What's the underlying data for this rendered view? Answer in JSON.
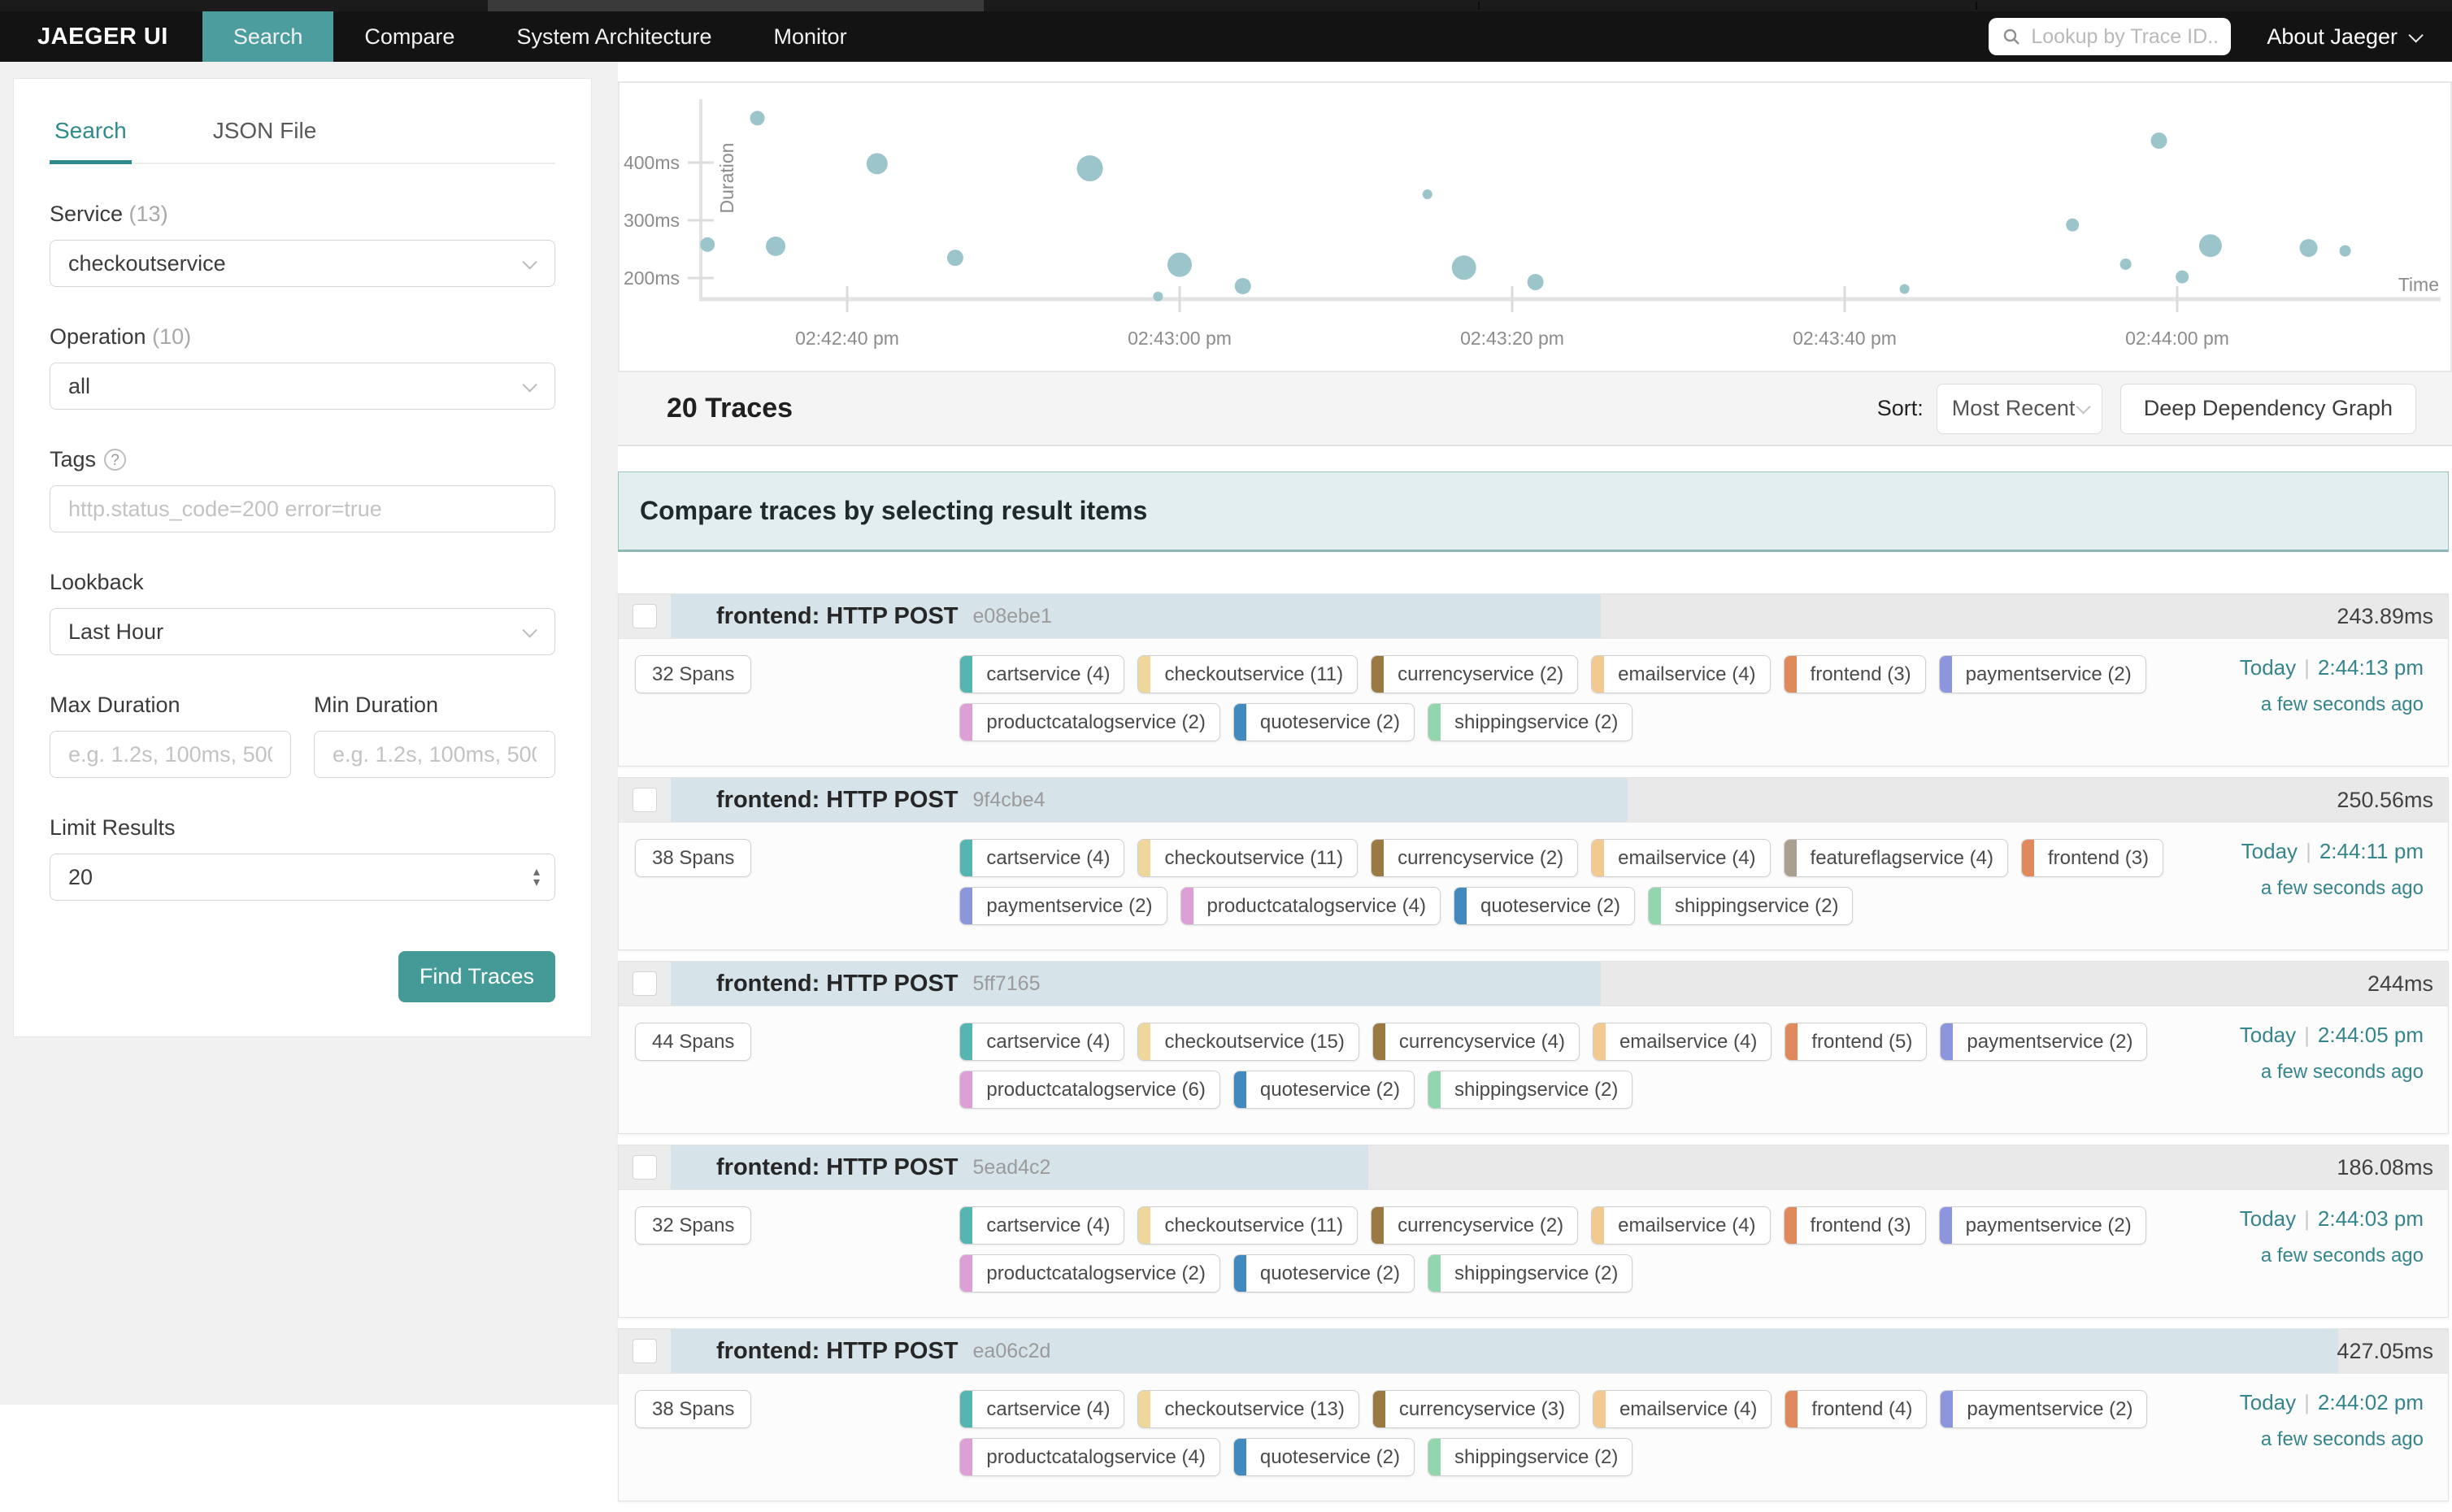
{
  "nav": {
    "brand": "JAEGER UI",
    "items": [
      {
        "label": "Search",
        "active": true
      },
      {
        "label": "Compare",
        "active": false
      },
      {
        "label": "System Architecture",
        "active": false
      },
      {
        "label": "Monitor",
        "active": false
      }
    ],
    "lookup_placeholder": "Lookup by Trace ID...",
    "about_label": "About Jaeger"
  },
  "sidebar": {
    "tabs": [
      {
        "label": "Search",
        "active": true
      },
      {
        "label": "JSON File",
        "active": false
      }
    ],
    "service": {
      "label": "Service",
      "count": "(13)",
      "value": "checkoutservice"
    },
    "operation": {
      "label": "Operation",
      "count": "(10)",
      "value": "all"
    },
    "tags": {
      "label": "Tags",
      "placeholder": "http.status_code=200 error=true"
    },
    "lookback": {
      "label": "Lookback",
      "value": "Last Hour"
    },
    "max_duration": {
      "label": "Max Duration",
      "placeholder": "e.g. 1.2s, 100ms, 500us"
    },
    "min_duration": {
      "label": "Min Duration",
      "placeholder": "e.g. 1.2s, 100ms, 500us"
    },
    "limit": {
      "label": "Limit Results",
      "value": "20"
    },
    "find_button": "Find Traces"
  },
  "results": {
    "count": "20 Traces",
    "sort_label": "Sort:",
    "sort_value": "Most Recent",
    "deep_dependency_button": "Deep Dependency Graph",
    "banner": "Compare traces by selecting result items"
  },
  "chart_data": {
    "type": "scatter",
    "xlabel": "Time",
    "ylabel": "Duration",
    "y_unit": "ms",
    "bubble_color": "#9cc4cb",
    "y_ticks": [
      200,
      300,
      400
    ],
    "x_ticks": [
      {
        "t": 40,
        "label": "02:42:40 pm"
      },
      {
        "t": 60,
        "label": "02:43:00 pm"
      },
      {
        "t": 80,
        "label": "02:43:20 pm"
      },
      {
        "t": 100,
        "label": "02:43:40 pm"
      },
      {
        "t": 120,
        "label": "02:44:00 pm"
      }
    ],
    "x_domain_seconds_after_02_42_00": [
      31,
      134
    ],
    "y_domain_ms": [
      163,
      510
    ],
    "points": [
      {
        "time": "02:42:31 pm",
        "t": 31.6,
        "duration_ms": 258,
        "r": 9
      },
      {
        "time": "02:42:34 pm",
        "t": 34.6,
        "duration_ms": 477,
        "r": 9
      },
      {
        "time": "02:42:35 pm",
        "t": 35.7,
        "duration_ms": 255,
        "r": 12
      },
      {
        "time": "02:42:41 pm",
        "t": 41.8,
        "duration_ms": 398,
        "r": 13
      },
      {
        "time": "02:42:46 pm",
        "t": 46.5,
        "duration_ms": 235,
        "r": 10
      },
      {
        "time": "02:42:54 pm",
        "t": 54.6,
        "duration_ms": 390,
        "r": 16
      },
      {
        "time": "02:42:58 pm",
        "t": 58.7,
        "duration_ms": 168,
        "r": 6
      },
      {
        "time": "02:43:00 pm",
        "t": 60.0,
        "duration_ms": 223,
        "r": 15
      },
      {
        "time": "02:43:03 pm",
        "t": 63.8,
        "duration_ms": 186,
        "r": 10
      },
      {
        "time": "02:43:14 pm",
        "t": 74.9,
        "duration_ms": 345,
        "r": 6
      },
      {
        "time": "02:43:17 pm",
        "t": 77.1,
        "duration_ms": 218,
        "r": 15
      },
      {
        "time": "02:43:21 pm",
        "t": 81.4,
        "duration_ms": 193,
        "r": 10
      },
      {
        "time": "02:43:43 pm",
        "t": 103.6,
        "duration_ms": 181,
        "r": 6
      },
      {
        "time": "02:43:53 pm",
        "t": 113.7,
        "duration_ms": 292,
        "r": 8
      },
      {
        "time": "02:43:56 pm",
        "t": 116.9,
        "duration_ms": 224,
        "r": 7
      },
      {
        "time": "02:43:58 pm",
        "t": 118.9,
        "duration_ms": 438,
        "r": 10
      },
      {
        "time": "02:44:00 pm",
        "t": 120.3,
        "duration_ms": 202,
        "r": 8
      },
      {
        "time": "02:44:02 pm",
        "t": 122.0,
        "duration_ms": 256,
        "r": 14
      },
      {
        "time": "02:44:07 pm",
        "t": 127.9,
        "duration_ms": 252,
        "r": 11
      },
      {
        "time": "02:44:10 pm",
        "t": 130.1,
        "duration_ms": 247,
        "r": 7
      }
    ]
  },
  "service_colors": {
    "cartservice": "#55b5b0",
    "checkoutservice": "#eed79d",
    "currencyservice": "#9b7942",
    "emailservice": "#f3c992",
    "featureflagservice": "#a9a08f",
    "frontend": "#e0895c",
    "paymentservice": "#8b96dc",
    "productcatalogservice": "#dd9fd5",
    "quoteservice": "#4289be",
    "shippingservice": "#91d6ad"
  },
  "traces": [
    {
      "title": "frontend: HTTP POST",
      "trace_id": "e08ebe1",
      "duration": "243.89ms",
      "duration_ms": 243.89,
      "spans": "32 Spans",
      "date": "Today",
      "time": "2:44:13 pm",
      "ago": "a few seconds ago",
      "tag_rows": [
        [
          {
            "service": "cartservice",
            "label": "cartservice (4)"
          },
          {
            "service": "checkoutservice",
            "label": "checkoutservice (11)"
          },
          {
            "service": "currencyservice",
            "label": "currencyservice (2)"
          },
          {
            "service": "emailservice",
            "label": "emailservice (4)"
          },
          {
            "service": "frontend",
            "label": "frontend (3)"
          },
          {
            "service": "paymentservice",
            "label": "paymentservice (2)"
          }
        ],
        [
          {
            "service": "productcatalogservice",
            "label": "productcatalogservice (2)"
          },
          {
            "service": "quoteservice",
            "label": "quoteservice (2)"
          },
          {
            "service": "shippingservice",
            "label": "shippingservice (2)"
          }
        ]
      ]
    },
    {
      "title": "frontend: HTTP POST",
      "trace_id": "9f4cbe4",
      "duration": "250.56ms",
      "duration_ms": 250.56,
      "spans": "38 Spans",
      "date": "Today",
      "time": "2:44:11 pm",
      "ago": "a few seconds ago",
      "tag_rows": [
        [
          {
            "service": "cartservice",
            "label": "cartservice (4)"
          },
          {
            "service": "checkoutservice",
            "label": "checkoutservice (11)"
          },
          {
            "service": "currencyservice",
            "label": "currencyservice (2)"
          },
          {
            "service": "emailservice",
            "label": "emailservice (4)"
          },
          {
            "service": "featureflagservice",
            "label": "featureflagservice (4)"
          },
          {
            "service": "frontend",
            "label": "frontend (3)"
          }
        ],
        [
          {
            "service": "paymentservice",
            "label": "paymentservice (2)"
          },
          {
            "service": "productcatalogservice",
            "label": "productcatalogservice (4)"
          },
          {
            "service": "quoteservice",
            "label": "quoteservice (2)"
          },
          {
            "service": "shippingservice",
            "label": "shippingservice (2)"
          }
        ]
      ]
    },
    {
      "title": "frontend: HTTP POST",
      "trace_id": "5ff7165",
      "duration": "244ms",
      "duration_ms": 244,
      "spans": "44 Spans",
      "date": "Today",
      "time": "2:44:05 pm",
      "ago": "a few seconds ago",
      "tag_rows": [
        [
          {
            "service": "cartservice",
            "label": "cartservice (4)"
          },
          {
            "service": "checkoutservice",
            "label": "checkoutservice (15)"
          },
          {
            "service": "currencyservice",
            "label": "currencyservice (4)"
          },
          {
            "service": "emailservice",
            "label": "emailservice (4)"
          },
          {
            "service": "frontend",
            "label": "frontend (5)"
          },
          {
            "service": "paymentservice",
            "label": "paymentservice (2)"
          }
        ],
        [
          {
            "service": "productcatalogservice",
            "label": "productcatalogservice (6)"
          },
          {
            "service": "quoteservice",
            "label": "quoteservice (2)"
          },
          {
            "service": "shippingservice",
            "label": "shippingservice (2)"
          }
        ]
      ]
    },
    {
      "title": "frontend: HTTP POST",
      "trace_id": "5ead4c2",
      "duration": "186.08ms",
      "duration_ms": 186.08,
      "spans": "32 Spans",
      "date": "Today",
      "time": "2:44:03 pm",
      "ago": "a few seconds ago",
      "tag_rows": [
        [
          {
            "service": "cartservice",
            "label": "cartservice (4)"
          },
          {
            "service": "checkoutservice",
            "label": "checkoutservice (11)"
          },
          {
            "service": "currencyservice",
            "label": "currencyservice (2)"
          },
          {
            "service": "emailservice",
            "label": "emailservice (4)"
          },
          {
            "service": "frontend",
            "label": "frontend (3)"
          },
          {
            "service": "paymentservice",
            "label": "paymentservice (2)"
          }
        ],
        [
          {
            "service": "productcatalogservice",
            "label": "productcatalogservice (2)"
          },
          {
            "service": "quoteservice",
            "label": "quoteservice (2)"
          },
          {
            "service": "shippingservice",
            "label": "shippingservice (2)"
          }
        ]
      ]
    },
    {
      "title": "frontend: HTTP POST",
      "trace_id": "ea06c2d",
      "duration": "427.05ms",
      "duration_ms": 427.05,
      "spans": "38 Spans",
      "date": "Today",
      "time": "2:44:02 pm",
      "ago": "a few seconds ago",
      "tag_rows": [
        [
          {
            "service": "cartservice",
            "label": "cartservice (4)"
          },
          {
            "service": "checkoutservice",
            "label": "checkoutservice (13)"
          },
          {
            "service": "currencyservice",
            "label": "currencyservice (3)"
          },
          {
            "service": "emailservice",
            "label": "emailservice (4)"
          },
          {
            "service": "frontend",
            "label": "frontend (4)"
          },
          {
            "service": "paymentservice",
            "label": "paymentservice (2)"
          }
        ],
        [
          {
            "service": "productcatalogservice",
            "label": "productcatalogservice (4)"
          },
          {
            "service": "quoteservice",
            "label": "quoteservice (2)"
          },
          {
            "service": "shippingservice",
            "label": "shippingservice (2)"
          }
        ]
      ]
    }
  ]
}
